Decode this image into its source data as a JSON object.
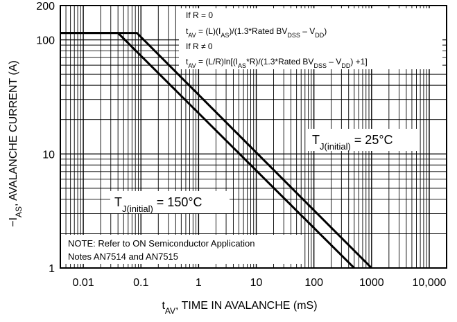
{
  "chart_data": {
    "type": "line",
    "title": "",
    "x_axis": {
      "scale": "log",
      "range": [
        0.004,
        20000
      ],
      "ticks": [
        0.01,
        0.1,
        1,
        10,
        100,
        1000,
        10000
      ],
      "tick_labels": [
        "0.01",
        "0.1",
        "1",
        "10",
        "100",
        "1000",
        "10,000"
      ],
      "label_main": "t",
      "label_sub": "AV",
      "label_rest": ", TIME IN AVALANCHE (mS)"
    },
    "y_axis": {
      "scale": "log",
      "range": [
        1,
        200
      ],
      "ticks": [
        1,
        10,
        100,
        200
      ],
      "tick_labels": [
        "1",
        "10",
        "100",
        "200"
      ],
      "label_pre": "−I",
      "label_sub": "AS",
      "label_rest": ", AVALANCHE CURRENT (A)"
    },
    "grid": true,
    "series": [
      {
        "name": "T_J(initial) = 25°C",
        "x": [
          0.004,
          0.085,
          1000
        ],
        "y": [
          115,
          115,
          1
        ]
      },
      {
        "name": "T_J(initial) = 150°C",
        "x": [
          0.004,
          0.04,
          500
        ],
        "y": [
          115,
          115,
          1
        ]
      }
    ],
    "formula": {
      "line1": "If R = 0",
      "line2_parts": [
        {
          "t": "t",
          "sub": false
        },
        {
          "t": "AV",
          "sub": true
        },
        {
          "t": " = (L)(I",
          "sub": false
        },
        {
          "t": "AS",
          "sub": true
        },
        {
          "t": ")/(1.3*Rated BV",
          "sub": false
        },
        {
          "t": "DSS",
          "sub": true
        },
        {
          "t": " – V",
          "sub": false
        },
        {
          "t": "DD",
          "sub": true
        },
        {
          "t": ")",
          "sub": false
        }
      ],
      "line3": "If R ≠ 0",
      "line4_parts": [
        {
          "t": "t",
          "sub": false
        },
        {
          "t": "AV",
          "sub": true
        },
        {
          "t": " = (L/R)ln[(I",
          "sub": false
        },
        {
          "t": "AS",
          "sub": true
        },
        {
          "t": "*R)/(1.3*Rated BV",
          "sub": false
        },
        {
          "t": "DSS",
          "sub": true
        },
        {
          "t": " – V",
          "sub": false
        },
        {
          "t": "DD",
          "sub": true
        },
        {
          "t": ") +1]",
          "sub": false
        }
      ]
    },
    "labels": {
      "t25": {
        "main": "T",
        "sub": "J(initial)",
        "rest": " = 25°C"
      },
      "t150": {
        "main": "T",
        "sub": "J(initial)",
        "rest": " = 150°C"
      }
    },
    "note": {
      "line1": "NOTE: Refer to ON Semiconductor Application",
      "line2": "Notes AN7514 and AN7515"
    }
  }
}
